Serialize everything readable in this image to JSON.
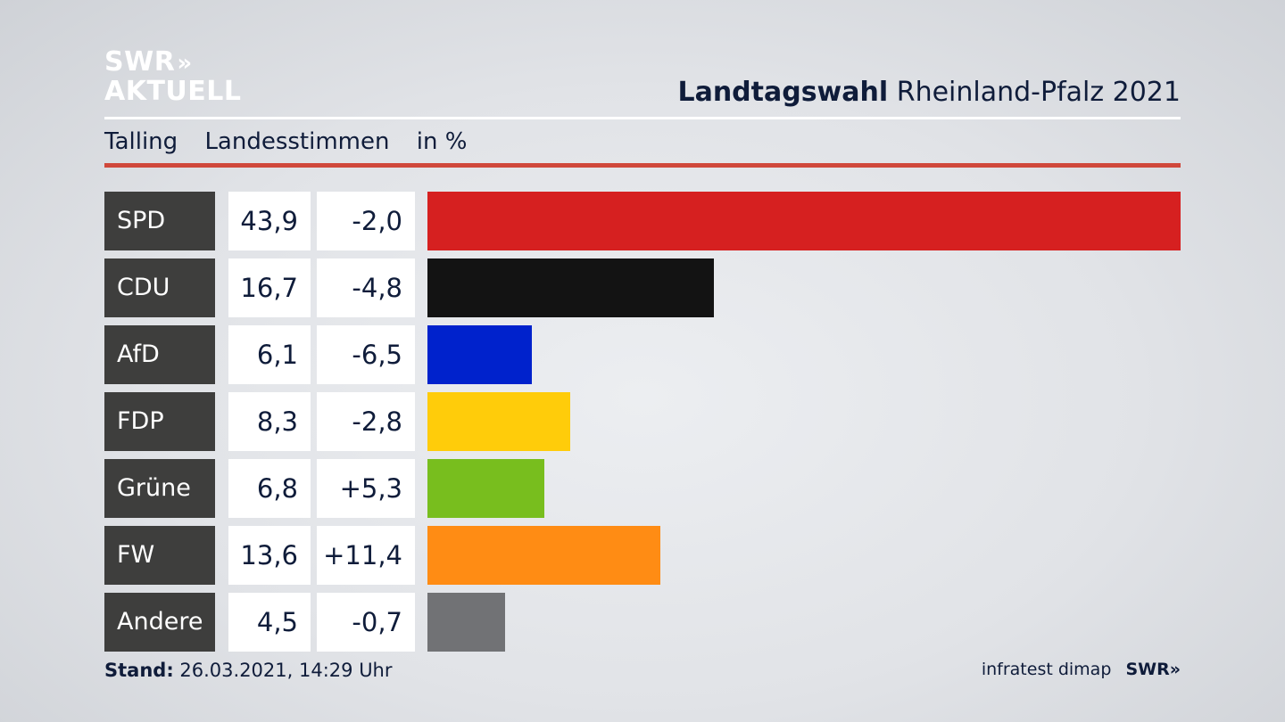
{
  "logo": {
    "line1": "SWR",
    "line2": "AKTUELL",
    "chevrons": "»"
  },
  "title": {
    "bold": "Landtagswahl",
    "rest": "Rheinland-Pfalz 2021"
  },
  "subtitle": {
    "part1": "Talling",
    "part2": "Landesstimmen",
    "part3": "in %"
  },
  "chart_data": {
    "type": "bar",
    "orientation": "horizontal",
    "title": "Landtagswahl Rheinland-Pfalz 2021",
    "subtitle": "Talling Landesstimmen in %",
    "categories": [
      "SPD",
      "CDU",
      "AfD",
      "FDP",
      "Grüne",
      "FW",
      "Andere"
    ],
    "values": [
      43.9,
      16.7,
      6.1,
      8.3,
      6.8,
      13.6,
      4.5
    ],
    "value_labels": [
      "43,9",
      "16,7",
      "6,1",
      "8,3",
      "6,8",
      "13,6",
      "4,5"
    ],
    "changes": [
      "-2,0",
      "-4,8",
      "-6,5",
      "-2,8",
      "+5,3",
      "+11,4",
      "-0,7"
    ],
    "colors": [
      "#d62020",
      "#131313",
      "#0022cc",
      "#ffcc0a",
      "#78be1e",
      "#ff8c14",
      "#717275"
    ],
    "xlim": [
      0,
      43.9
    ],
    "grid": false
  },
  "footer": {
    "stand_label": "Stand:",
    "stand_value": "26.03.2021, 14:29 Uhr",
    "source": "infratest dimap",
    "brand": "SWR",
    "brand_chevrons": "»"
  }
}
